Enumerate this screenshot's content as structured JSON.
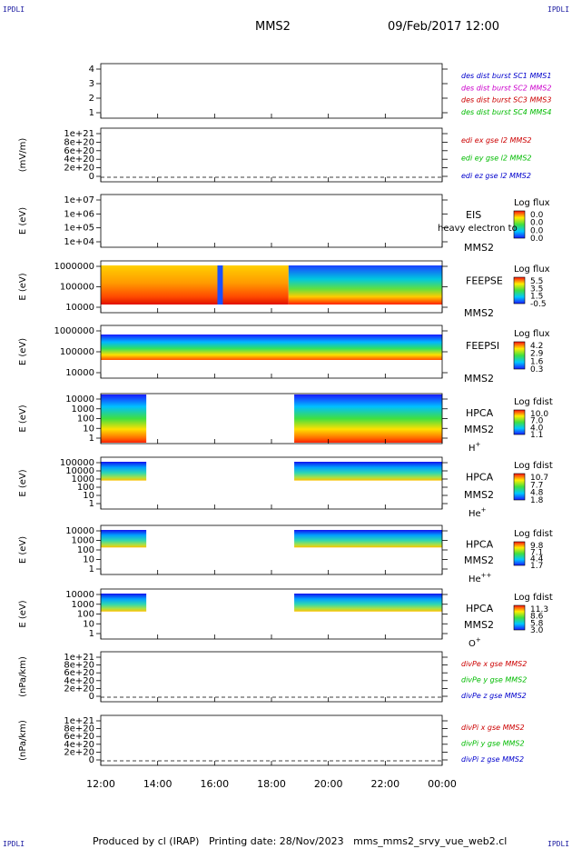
{
  "header": {
    "mission": "MMS2",
    "datetime": "09/Feb/2017 12:00",
    "corner_label": "IPDLI"
  },
  "footer": {
    "produced": "Produced by cl (IRAP)   Printing date: 28/Nov/2023   mms_mms2_srvy_vue_web2.cl"
  },
  "chart_data": [
    {
      "id": "panel-sc",
      "type": "line",
      "yticks": [
        "4",
        "3",
        "2",
        "1"
      ],
      "ylabel": "",
      "legend": [
        {
          "text": "des dist burst SC1 MMS1",
          "color": "#0000cc"
        },
        {
          "text": "des dist burst SC2 MMS2",
          "color": "#cc00cc"
        },
        {
          "text": "des dist burst SC3 MMS3",
          "color": "#cc0000"
        },
        {
          "text": "des dist burst SC4 MMS4",
          "color": "#00bb00"
        }
      ],
      "series": []
    },
    {
      "id": "panel-edi",
      "type": "line",
      "yticks": [
        "1e+21",
        "8e+20",
        "6e+20",
        "4e+20",
        "2e+20",
        "0"
      ],
      "ylabel": "(mV/m)",
      "legend": [
        {
          "text": "edi ex gse l2 MMS2",
          "color": "#cc0000"
        },
        {
          "text": "edi ey gse l2 MMS2",
          "color": "#00bb00"
        },
        {
          "text": "edi ez gse l2 MMS2",
          "color": "#0000cc"
        }
      ],
      "zero_line": true,
      "series": []
    },
    {
      "id": "panel-eis",
      "type": "heatmap",
      "yticks": [
        "1e+07",
        "1e+06",
        "1e+05",
        "1e+04"
      ],
      "ylabel": "E (eV)",
      "instrument": [
        "EIS",
        "MMS2"
      ],
      "overlay_text": "heavy electron to",
      "colorbar": {
        "title": "Log flux",
        "ticks": [
          "0.0",
          "0.0",
          "0.0",
          "0.0"
        ]
      },
      "data_spans": []
    },
    {
      "id": "panel-feepse",
      "type": "heatmap",
      "yticks": [
        "1000000",
        "100000",
        "10000"
      ],
      "ylabel": "E (eV)",
      "instrument": [
        "FEEPSE",
        "MMS2"
      ],
      "colorbar": {
        "title": "Log flux",
        "ticks": [
          "5.5",
          "3.5",
          "1.5",
          "-0.5"
        ]
      },
      "data_spans": [
        [
          12.0,
          24.0
        ]
      ]
    },
    {
      "id": "panel-feepsi",
      "type": "heatmap",
      "yticks": [
        "1000000",
        "100000",
        "10000"
      ],
      "ylabel": "E (eV)",
      "instrument": [
        "FEEPSI",
        "MMS2"
      ],
      "colorbar": {
        "title": "Log flux",
        "ticks": [
          "4.2",
          "2.9",
          "1.6",
          "0.3"
        ]
      },
      "data_spans": [
        [
          12.0,
          24.0
        ]
      ]
    },
    {
      "id": "panel-hpca-h",
      "type": "heatmap",
      "yticks": [
        "10000",
        "1000",
        "100",
        "10",
        "1"
      ],
      "ylabel": "E (eV)",
      "instrument": [
        "HPCA",
        "MMS2",
        "H",
        "+"
      ],
      "colorbar": {
        "title": "Log fdist",
        "ticks": [
          "10.0",
          "7.0",
          "4.0",
          "1.1"
        ]
      },
      "data_spans": [
        [
          12.0,
          13.6
        ],
        [
          18.8,
          24.0
        ]
      ]
    },
    {
      "id": "panel-hpca-he",
      "type": "heatmap",
      "yticks": [
        "100000",
        "10000",
        "1000",
        "100",
        "10",
        "1"
      ],
      "ylabel": "E (eV)",
      "instrument": [
        "HPCA",
        "MMS2",
        "He",
        "+"
      ],
      "colorbar": {
        "title": "Log fdist",
        "ticks": [
          "10.7",
          "7.7",
          "4.8",
          "1.8"
        ]
      },
      "data_spans": [
        [
          12.0,
          13.6
        ],
        [
          18.8,
          24.0
        ]
      ]
    },
    {
      "id": "panel-hpca-hepp",
      "type": "heatmap",
      "yticks": [
        "10000",
        "1000",
        "100",
        "10",
        "1"
      ],
      "ylabel": "E (eV)",
      "instrument": [
        "HPCA",
        "MMS2",
        "He",
        "++"
      ],
      "colorbar": {
        "title": "Log fdist",
        "ticks": [
          "9.8",
          "7.1",
          "4.4",
          "1.7"
        ]
      },
      "data_spans": [
        [
          12.0,
          13.6
        ],
        [
          18.8,
          24.0
        ]
      ]
    },
    {
      "id": "panel-hpca-o",
      "type": "heatmap",
      "yticks": [
        "10000",
        "1000",
        "100",
        "10",
        "1"
      ],
      "ylabel": "E (eV)",
      "instrument": [
        "HPCA",
        "MMS2",
        "O",
        "+"
      ],
      "colorbar": {
        "title": "Log fdist",
        "ticks": [
          "11.3",
          "8.6",
          "5.8",
          "3.0"
        ]
      },
      "data_spans": [
        [
          12.0,
          13.6
        ],
        [
          18.8,
          24.0
        ]
      ]
    },
    {
      "id": "panel-divpe",
      "type": "line",
      "yticks": [
        "1e+21",
        "8e+20",
        "6e+20",
        "4e+20",
        "2e+20",
        "0"
      ],
      "ylabel": "(nPa/km)",
      "legend": [
        {
          "text": "divPe x gse MMS2",
          "color": "#cc0000"
        },
        {
          "text": "divPe y gse MMS2",
          "color": "#00bb00"
        },
        {
          "text": "divPe z gse MMS2",
          "color": "#0000cc"
        }
      ],
      "zero_line": true,
      "series": []
    },
    {
      "id": "panel-divpi",
      "type": "line",
      "yticks": [
        "1e+21",
        "8e+20",
        "6e+20",
        "4e+20",
        "2e+20",
        "0"
      ],
      "ylabel": "(nPa/km)",
      "legend": [
        {
          "text": "divPi x gse MMS2",
          "color": "#cc0000"
        },
        {
          "text": "divPi y gse MMS2",
          "color": "#00bb00"
        },
        {
          "text": "divPi z gse MMS2",
          "color": "#0000cc"
        }
      ],
      "zero_line": true,
      "series": []
    }
  ],
  "time_axis": {
    "ticks": [
      "12:00",
      "14:00",
      "16:00",
      "18:00",
      "20:00",
      "22:00",
      "00:00"
    ],
    "range_hours": [
      12,
      24
    ]
  }
}
